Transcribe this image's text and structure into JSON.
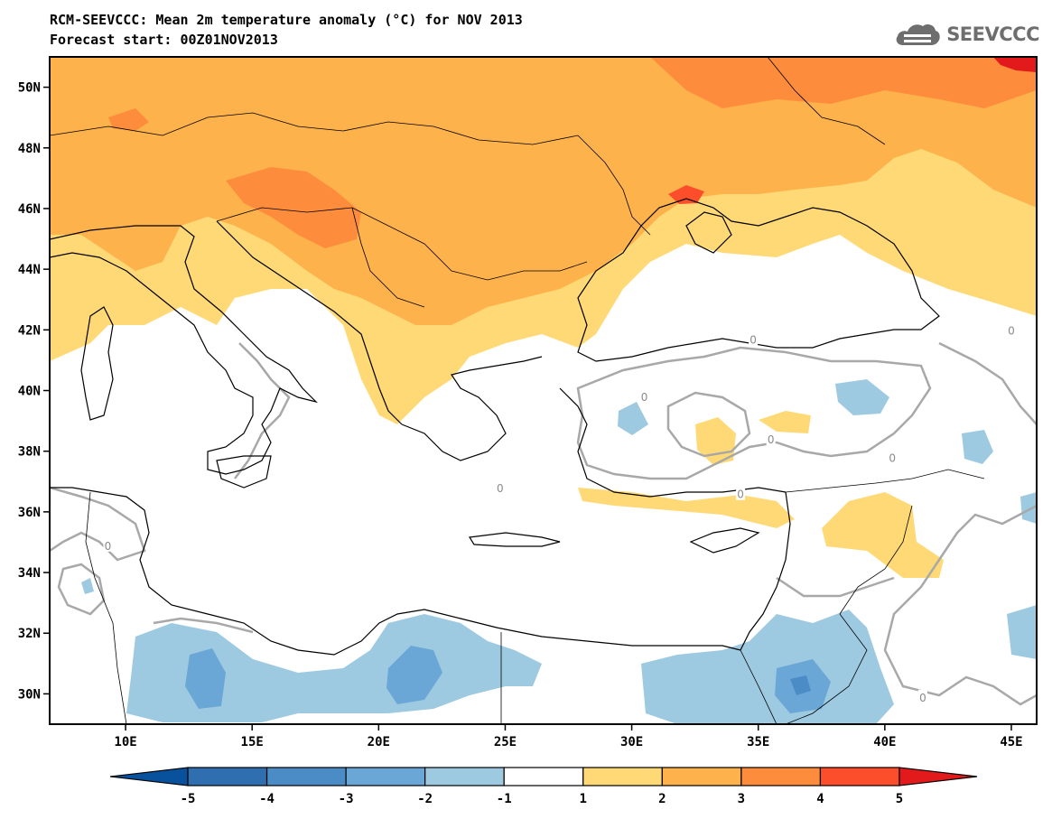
{
  "title": {
    "line1": "RCM-SEEVCCC: Mean 2m temperature anomaly (°C) for NOV 2013",
    "line2": "Forecast start: 00Z01NOV2013"
  },
  "logo": {
    "text": "SEEVCCC",
    "icon": "cloud-icon"
  },
  "map": {
    "lon_range": [
      7,
      46
    ],
    "lat_range": [
      29,
      51
    ],
    "lon_ticks": [
      {
        "value": 10,
        "label": "10E"
      },
      {
        "value": 15,
        "label": "15E"
      },
      {
        "value": 20,
        "label": "20E"
      },
      {
        "value": 25,
        "label": "25E"
      },
      {
        "value": 30,
        "label": "30E"
      },
      {
        "value": 35,
        "label": "35E"
      },
      {
        "value": 40,
        "label": "40E"
      },
      {
        "value": 45,
        "label": "45E"
      }
    ],
    "lat_ticks": [
      {
        "value": 30,
        "label": "30N"
      },
      {
        "value": 32,
        "label": "32N"
      },
      {
        "value": 34,
        "label": "34N"
      },
      {
        "value": 36,
        "label": "36N"
      },
      {
        "value": 38,
        "label": "38N"
      },
      {
        "value": 40,
        "label": "40N"
      },
      {
        "value": 42,
        "label": "42N"
      },
      {
        "value": 44,
        "label": "44N"
      },
      {
        "value": 46,
        "label": "46N"
      },
      {
        "value": 48,
        "label": "48N"
      },
      {
        "value": 50,
        "label": "50N"
      }
    ],
    "contour_label": "0"
  },
  "colorbar": {
    "levels": [
      "-5",
      "-4",
      "-3",
      "-2",
      "-1",
      "1",
      "2",
      "3",
      "4",
      "5"
    ],
    "colors": [
      "#08519c",
      "#2f6fb0",
      "#4b8cc6",
      "#6aa7d6",
      "#9ecae1",
      "#ffffff",
      "#fed976",
      "#feb24c",
      "#fd8d3c",
      "#fc4e2a",
      "#e31a1c"
    ]
  },
  "colors": {
    "warm1": "#fed976",
    "warm2": "#feb24c",
    "warm3": "#fd8d3c",
    "warm4": "#fc4e2a",
    "warm5": "#e31a1c",
    "cool1": "#9ecae1",
    "cool2": "#6aa7d6",
    "contour": "#a8a8a8",
    "coast": "#000000"
  }
}
